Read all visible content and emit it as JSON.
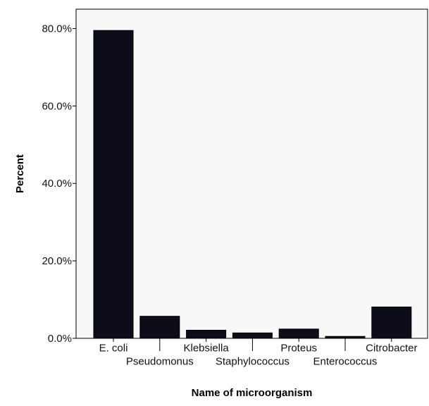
{
  "chart_data": {
    "type": "bar",
    "xlabel": "Name of microorganism",
    "ylabel": "Percent",
    "ylim": [
      0,
      85
    ],
    "yticks": [
      0,
      20,
      40,
      60,
      80
    ],
    "ytick_labels": [
      "0.0%",
      "20.0%",
      "40.0%",
      "60.0%",
      "80.0%"
    ],
    "categories": [
      "E. coli",
      "Pseudomonus",
      "Klebsiella",
      "Staphylococcus",
      "Proteus",
      "Enterococcus",
      "Citrobacter"
    ],
    "values": [
      79.5,
      5.7,
      2.1,
      1.4,
      2.4,
      0.5,
      8.1
    ],
    "grid": false,
    "legend": "none",
    "colors": {
      "bar_fill": "#0d0d1a",
      "plot_background": "#f8f8f8",
      "axis": "#000000"
    }
  }
}
